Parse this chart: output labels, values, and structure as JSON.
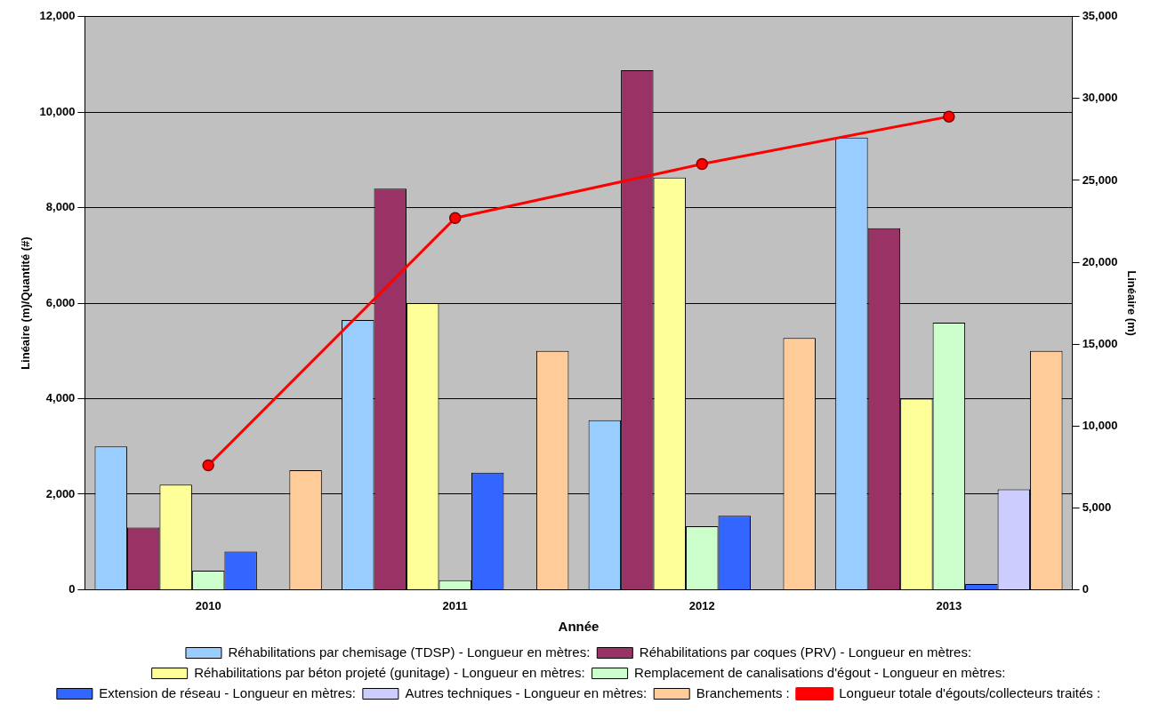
{
  "chart_data": {
    "type": "bar",
    "xlabel": "Année",
    "ylabel": "Linéaire (m)/Quantité (#)",
    "y2label": "Linéaire (m)",
    "categories": [
      "2010",
      "2011",
      "2012",
      "2013"
    ],
    "series": [
      {
        "name": "Réhabilitations par chemisage (TDSP) - Longueur en mètres:",
        "color": "#99ccff",
        "values": [
          3000,
          5650,
          3550,
          9470
        ]
      },
      {
        "name": "Réhabilitations par coques (PRV) - Longueur en mètres:",
        "color": "#993366",
        "values": [
          1300,
          8400,
          10880,
          7570
        ]
      },
      {
        "name": "Réhabilitations par béton projeté (gunitage) - Longueur en mètres:",
        "color": "#ffff99",
        "values": [
          2200,
          6000,
          8630,
          4000
        ]
      },
      {
        "name": "Remplacement de canalisations d'égout - Longueur en mètres:",
        "color": "#ccffcc",
        "values": [
          400,
          200,
          1330,
          5590
        ]
      },
      {
        "name": "Extension de réseau - Longueur en mètres:",
        "color": "#3366ff",
        "values": [
          800,
          2450,
          1550,
          120
        ]
      },
      {
        "name": "Autres techniques - Longueur en mètres:",
        "color": "#ccccff",
        "values": [
          null,
          null,
          null,
          2100
        ]
      },
      {
        "name": "Branchements :",
        "color": "#ffcc99",
        "values": [
          2500,
          5000,
          5270,
          5000
        ]
      },
      {
        "name": "Longueur totale d'égouts/collecteurs traités :",
        "type": "line",
        "axis": "y2",
        "color": "#ff0000",
        "values": [
          7600,
          22700,
          26000,
          28900
        ]
      }
    ],
    "ylim": [
      0,
      12000
    ],
    "yticks": [
      0,
      {
        "value": 2000,
        "label": "2,000"
      },
      {
        "value": 4000,
        "label": "4,000"
      },
      {
        "value": 6000,
        "label": "6,000"
      },
      {
        "value": 8000,
        "label": "8,000"
      },
      {
        "value": 10000,
        "label": "10,000"
      },
      {
        "value": 12000,
        "label": "12,000"
      }
    ],
    "y2lim": [
      0,
      35000
    ],
    "y2ticks": [
      0,
      {
        "value": 5000,
        "label": "5,000"
      },
      {
        "value": 10000,
        "label": "10,000"
      },
      {
        "value": 15000,
        "label": "15,000"
      },
      {
        "value": 20000,
        "label": "20,000"
      },
      {
        "value": 25000,
        "label": "25,000"
      },
      {
        "value": 30000,
        "label": "30,000"
      },
      {
        "value": 35000,
        "label": "35,000"
      }
    ],
    "grid": "y",
    "legend": "bottom",
    "marker": "circle",
    "line_style": "solid"
  }
}
